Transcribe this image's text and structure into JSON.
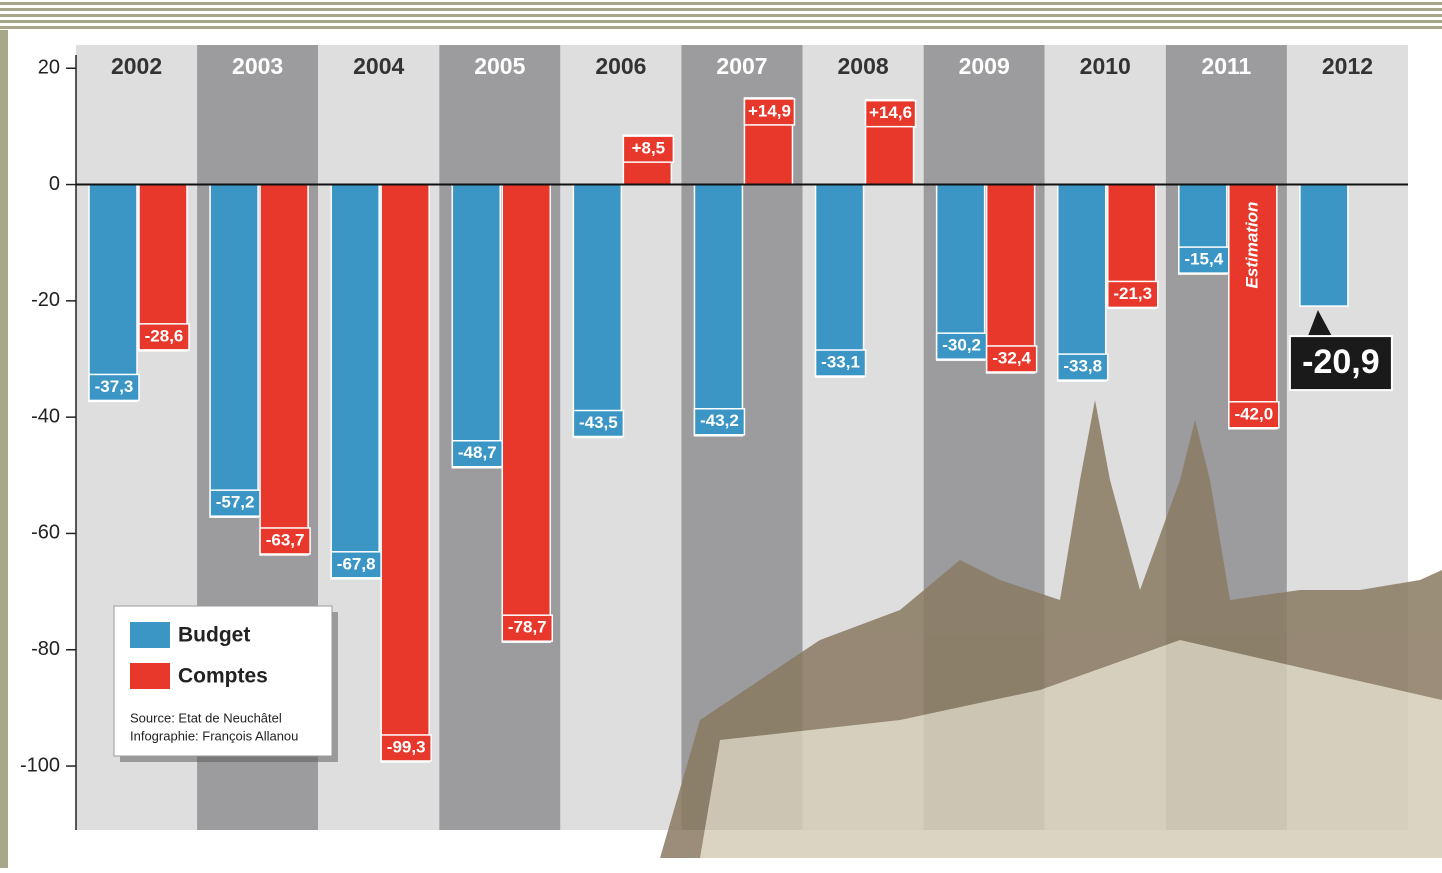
{
  "chart_data": {
    "type": "bar",
    "categories": [
      "2002",
      "2003",
      "2004",
      "2005",
      "2006",
      "2007",
      "2008",
      "2009",
      "2010",
      "2011",
      "2012"
    ],
    "series": [
      {
        "name": "Budget",
        "color": "#3b96c5",
        "values": [
          -37.3,
          -57.2,
          -67.8,
          -48.7,
          -43.5,
          -43.2,
          -33.1,
          -30.2,
          -33.8,
          -15.4,
          -20.9
        ],
        "value_labels": [
          "-37,3",
          "-57,2",
          "-67,8",
          "-48,7",
          "-43,5",
          "-43,2",
          "-33,1",
          "-30,2",
          "-33,8",
          "-15,4",
          "-20,9"
        ]
      },
      {
        "name": "Comptes",
        "color": "#e8372b",
        "values": [
          -28.6,
          -63.7,
          -99.3,
          -78.7,
          8.5,
          14.9,
          14.6,
          -32.4,
          -21.3,
          -42.0,
          null
        ],
        "value_labels": [
          "-28,6",
          "-63,7",
          "-99,3",
          "-78,7",
          "+8,5",
          "+14,9",
          "+14,6",
          "-32,4",
          "-21,3",
          "-42,0",
          null
        ]
      }
    ],
    "annotation": "Estimation",
    "source": "Source: Etat de Neuchâtel",
    "credit": "Infographie: François Allanou",
    "ylim": [
      -111,
      24
    ],
    "yticks": [
      20,
      0,
      -20,
      -40,
      -60,
      -80,
      -100
    ]
  }
}
